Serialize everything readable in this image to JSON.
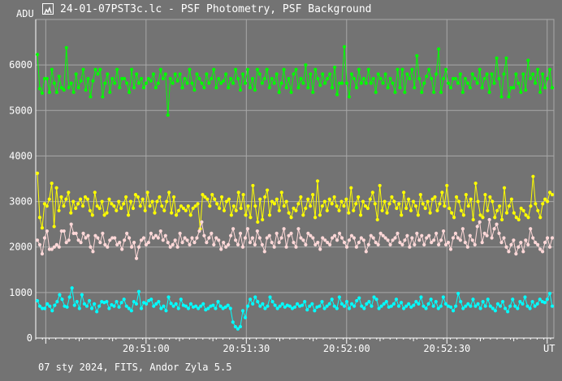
{
  "window": {
    "title": "24-01-07PST3c.lc - PSF Photometry, PSF Background",
    "icon": "light-curve-icon"
  },
  "footer": {
    "text": "07 sty 2024, FITS, Andor Zyla 5.5"
  },
  "colors": {
    "background": "#737373",
    "grid": "#a8a8a8",
    "axis": "#ffffff"
  },
  "chart_data": {
    "type": "line",
    "ylabel": "ADU",
    "xlabel": "UT",
    "ylim": [
      0,
      7000
    ],
    "y_ticks": [
      0,
      1000,
      2000,
      3000,
      4000,
      5000,
      6000
    ],
    "x_tick_labels": [
      "20:51:00",
      "20:51:30",
      "20:52:00",
      "20:52:30"
    ],
    "x_range": [
      "20:50:27",
      "20:53:02"
    ],
    "grid": true,
    "series": [
      {
        "color": "#00ff00",
        "values": [
          6230,
          5480,
          5380,
          5700,
          5700,
          5400,
          5900,
          5600,
          5400,
          5750,
          5500,
          5450,
          6380,
          5500,
          5600,
          5400,
          5800,
          5500,
          5650,
          5900,
          5450,
          5700,
          5300,
          5650,
          5900,
          5800,
          5900,
          5300,
          5600,
          5800,
          5400,
          5700,
          5600,
          5900,
          5500,
          5700,
          5700,
          5600,
          5400,
          5900,
          5500,
          5800,
          5600,
          5700,
          5500,
          5600,
          5700,
          5650,
          5800,
          5500,
          5600,
          5900,
          5700,
          5800,
          4900,
          5700,
          5600,
          5800,
          5650,
          5800,
          5500,
          5700,
          5600,
          5900,
          5600,
          5450,
          5800,
          5700,
          5600,
          5500,
          5800,
          5600,
          5700,
          5900,
          5500,
          5700,
          5600,
          5650,
          5800,
          5500,
          5700,
          5600,
          5900,
          5700,
          5450,
          5800,
          5600,
          5900,
          5500,
          5700,
          5450,
          5900,
          5800,
          5600,
          5700,
          5900,
          5500,
          5700,
          5600,
          5800,
          5400,
          5600,
          5900,
          5500,
          5700,
          5400,
          5800,
          5900,
          5500,
          5700,
          5600,
          6000,
          5500,
          5800,
          5400,
          5900,
          5700,
          5550,
          5800,
          5600,
          5700,
          5800,
          5500,
          5950,
          5350,
          5600,
          5600,
          6400,
          5600,
          5300,
          5800,
          5700,
          5500,
          5900,
          5600,
          5700,
          5600,
          5900,
          5600,
          5700,
          5400,
          5800,
          5700,
          5600,
          5800,
          5500,
          5700,
          5600,
          5400,
          5900,
          5500,
          5900,
          5400,
          5800,
          5700,
          5900,
          5500,
          6200,
          5700,
          5400,
          5600,
          5750,
          5900,
          5700,
          5400,
          5800,
          6350,
          5400,
          5700,
          5900,
          5600,
          5500,
          5700,
          5700,
          5600,
          5800,
          5400,
          5700,
          5600,
          5500,
          5800,
          5700,
          5600,
          5900,
          5500,
          5700,
          5800,
          5400,
          5800,
          5600,
          6150,
          5700,
          5300,
          5800,
          6150,
          5300,
          5500,
          5500,
          5800,
          5600,
          5400,
          5800,
          5450,
          6100,
          5700,
          5800,
          5600,
          5900,
          5400,
          5800,
          5500,
          5700,
          5900,
          5500
        ]
      },
      {
        "color": "#ffff00",
        "values": [
          3620,
          2650,
          2420,
          2950,
          2900,
          3050,
          3400,
          2450,
          3300,
          2800,
          3100,
          2900,
          3050,
          3200,
          2750,
          3000,
          2850,
          2950,
          3050,
          2900,
          3100,
          3050,
          2800,
          2700,
          3200,
          2900,
          2850,
          3000,
          2700,
          2750,
          3050,
          2950,
          2900,
          2800,
          3000,
          2850,
          2950,
          3100,
          2700,
          3000,
          2850,
          3150,
          3100,
          2900,
          3050,
          2800,
          3200,
          2900,
          3000,
          2750,
          3000,
          3100,
          2900,
          2800,
          3000,
          3200,
          2750,
          3100,
          2700,
          2800,
          2900,
          2850,
          2800,
          2900,
          2700,
          2850,
          2900,
          2950,
          2400,
          3150,
          3100,
          3050,
          2900,
          3150,
          3050,
          2950,
          2850,
          3100,
          2800,
          3000,
          3050,
          2700,
          2900,
          2800,
          3200,
          2850,
          3150,
          2700,
          2900,
          2650,
          3350,
          2900,
          2550,
          3050,
          2600,
          3100,
          3250,
          2700,
          3000,
          2950,
          3050,
          2800,
          3200,
          2900,
          3000,
          2750,
          2650,
          2850,
          2800,
          2950,
          3100,
          2700,
          2850,
          3050,
          2900,
          3150,
          2650,
          3450,
          2700,
          2900,
          3000,
          2800,
          3050,
          2950,
          3100,
          2900,
          2800,
          3000,
          2900,
          3050,
          2750,
          3300,
          2800,
          2950,
          3100,
          2700,
          3000,
          2900,
          2850,
          3050,
          3200,
          2950,
          2600,
          3350,
          2800,
          3000,
          2750,
          2950,
          3100,
          3000,
          2850,
          2950,
          2700,
          3200,
          2850,
          3050,
          2800,
          3000,
          2900,
          2700,
          3150,
          2950,
          2850,
          3000,
          2750,
          3050,
          3100,
          2800,
          2950,
          3200,
          2900,
          3350,
          2850,
          2750,
          2650,
          3100,
          3000,
          2800,
          2700,
          3150,
          2900,
          3050,
          2600,
          3400,
          3000,
          2700,
          2650,
          3150,
          2800,
          3100,
          3000,
          2650,
          2800,
          2900,
          2600,
          3300,
          2750,
          2900,
          3050,
          2750,
          2650,
          2600,
          2850,
          2800,
          2700,
          2650,
          2900,
          3550,
          2950,
          2800,
          2650,
          2950,
          3050,
          3000,
          3200,
          3150
        ]
      },
      {
        "color": "#ffd8d8",
        "values": [
          2150,
          2050,
          1850,
          2200,
          2350,
          1950,
          1950,
          2000,
          2050,
          2000,
          2350,
          2350,
          2100,
          2150,
          2500,
          2300,
          2300,
          2150,
          2100,
          2300,
          2200,
          2250,
          2000,
          1900,
          2250,
          2200,
          2100,
          2300,
          2050,
          2000,
          2150,
          2200,
          2200,
          2050,
          2100,
          1950,
          2150,
          2300,
          2200,
          2000,
          2100,
          1750,
          2000,
          2150,
          2200,
          2050,
          2100,
          2300,
          2200,
          2250,
          2200,
          2350,
          2150,
          2250,
          2100,
          2000,
          2050,
          2150,
          2000,
          2300,
          2100,
          2200,
          2150,
          2050,
          2200,
          2100,
          2200,
          2350,
          2550,
          2250,
          2100,
          2200,
          2300,
          2050,
          2200,
          2150,
          1950,
          2100,
          2000,
          2050,
          2250,
          2400,
          2150,
          2050,
          2300,
          2000,
          2200,
          2400,
          2100,
          2200,
          2050,
          2350,
          2200,
          2050,
          1900,
          2200,
          2250,
          2100,
          2000,
          2300,
          2100,
          2200,
          2400,
          2000,
          2250,
          2300,
          2100,
          2000,
          2400,
          2200,
          2150,
          2050,
          2300,
          2250,
          2200,
          2050,
          2100,
          1950,
          2200,
          2150,
          2100,
          2050,
          2200,
          2250,
          2150,
          2300,
          2200,
          2100,
          2000,
          2150,
          2250,
          2200,
          2000,
          2100,
          2200,
          2150,
          1900,
          2050,
          2250,
          2200,
          2100,
          2050,
          2300,
          2250,
          2200,
          2150,
          2050,
          2150,
          2200,
          2300,
          2100,
          2050,
          2150,
          2250,
          2000,
          2200,
          2050,
          2300,
          2150,
          2250,
          2050,
          2200,
          2250,
          2100,
          2150,
          2300,
          2050,
          2150,
          2350,
          2050,
          2100,
          1950,
          2200,
          2300,
          2200,
          2150,
          2400,
          2100,
          2000,
          2250,
          2150,
          2050,
          2450,
          2550,
          2100,
          2300,
          2250,
          2600,
          2200,
          2400,
          2500,
          2300,
          2100,
          2200,
          2000,
          1900,
          2050,
          2150,
          1850,
          2000,
          2100,
          1900,
          2150,
          2050,
          2400,
          2200,
          2100,
          2050,
          1950,
          1900,
          2100,
          2200,
          2000,
          2200
        ]
      },
      {
        "color": "#00ffff",
        "values": [
          820,
          700,
          650,
          650,
          750,
          700,
          600,
          720,
          800,
          950,
          850,
          700,
          680,
          900,
          1100,
          720,
          800,
          650,
          950,
          750,
          700,
          820,
          650,
          750,
          580,
          700,
          800,
          780,
          800,
          650,
          730,
          700,
          800,
          680,
          780,
          850,
          700,
          650,
          600,
          800,
          750,
          1020,
          650,
          780,
          750,
          820,
          850,
          700,
          750,
          800,
          650,
          700,
          600,
          900,
          760,
          700,
          750,
          650,
          850,
          720,
          700,
          650,
          750,
          680,
          700,
          650,
          700,
          750,
          620,
          650,
          700,
          720,
          650,
          800,
          700,
          650,
          680,
          720,
          650,
          350,
          250,
          200,
          250,
          600,
          450,
          700,
          850,
          750,
          900,
          800,
          700,
          750,
          650,
          700,
          900,
          800,
          720,
          650,
          700,
          750,
          680,
          720,
          700,
          650,
          680,
          750,
          700,
          720,
          800,
          620,
          700,
          750,
          600,
          680,
          700,
          800,
          650,
          700,
          750,
          850,
          700,
          650,
          900,
          750,
          700,
          800,
          650,
          750,
          700,
          820,
          880,
          700,
          650,
          750,
          800,
          700,
          900,
          850,
          650,
          700,
          750,
          800,
          680,
          700,
          750,
          850,
          700,
          780,
          650,
          700,
          750,
          680,
          720,
          800,
          750,
          900,
          700,
          650,
          750,
          850,
          700,
          800,
          650,
          700,
          900,
          750,
          700,
          680,
          600,
          700,
          980,
          800,
          650,
          700,
          750,
          700,
          850,
          700,
          750,
          650,
          800,
          700,
          850,
          700,
          650,
          600,
          750,
          700,
          800,
          650,
          580,
          700,
          850,
          700,
          650,
          800,
          750,
          900,
          700,
          650,
          800,
          700,
          750,
          850,
          800,
          780,
          850,
          980,
          700
        ]
      }
    ]
  }
}
